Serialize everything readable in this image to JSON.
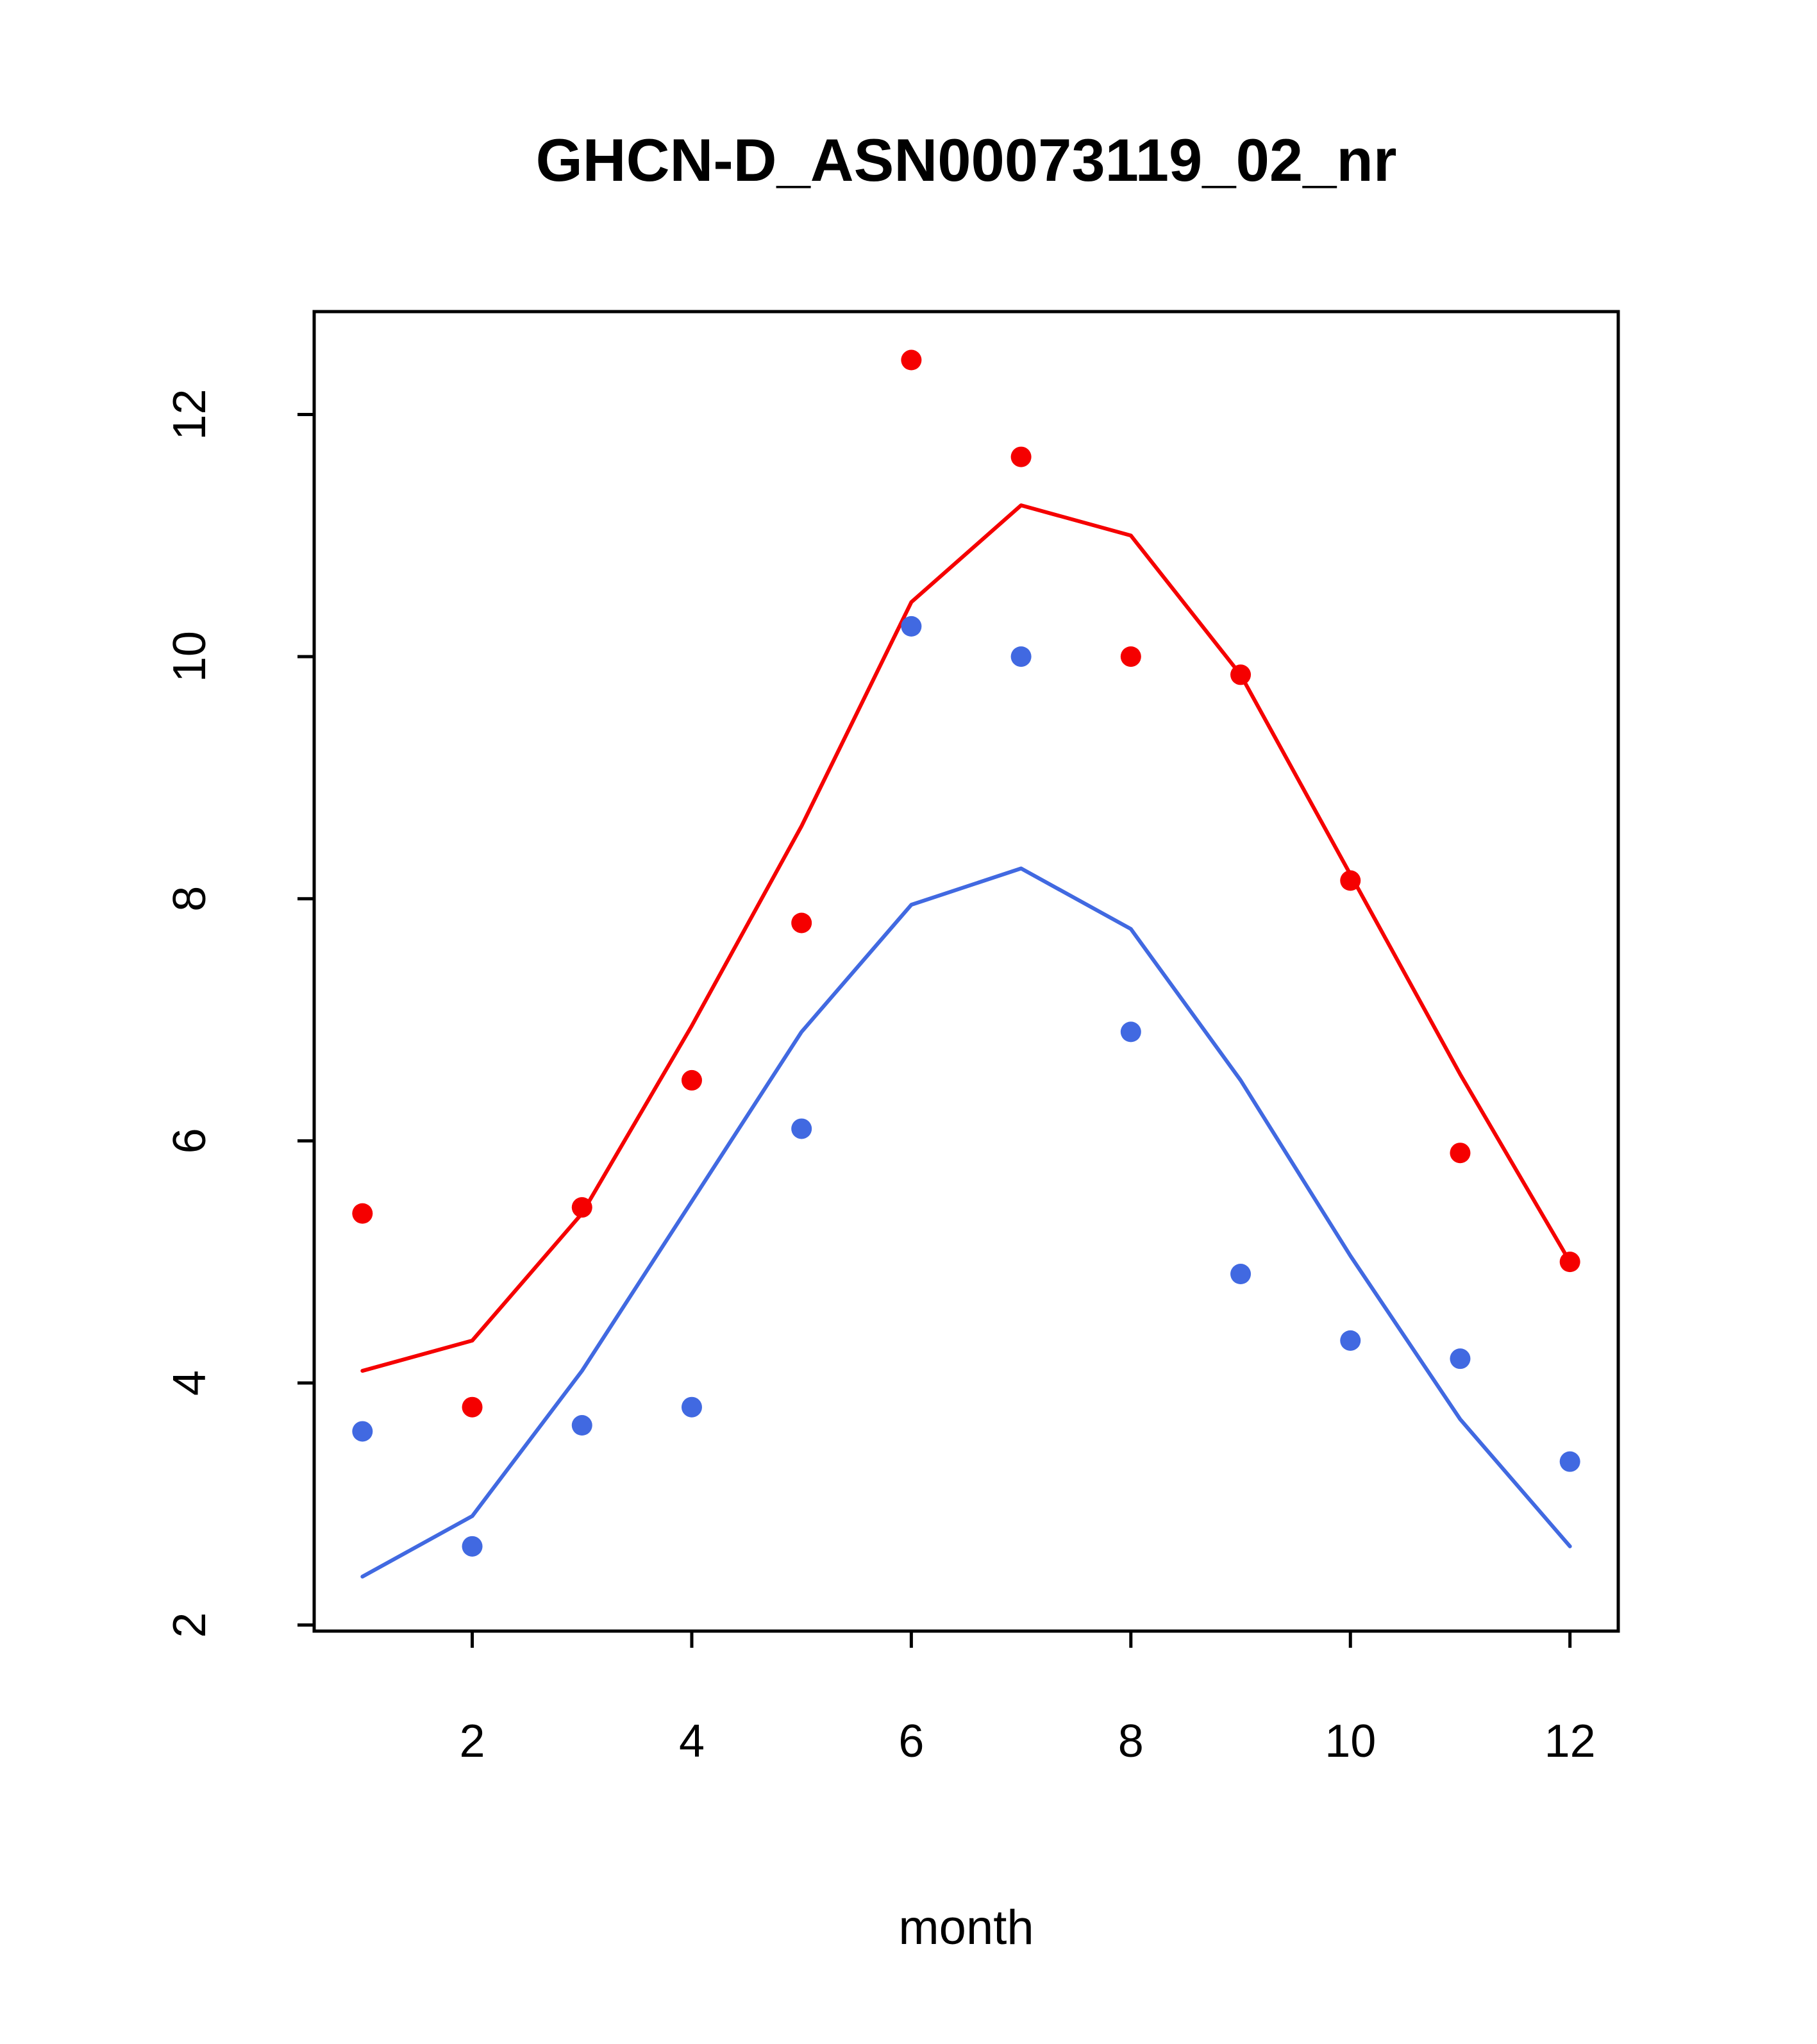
{
  "title": "GHCN-D_ASN00073119_02_nr",
  "chart_data": {
    "type": "line",
    "title": "GHCN-D_ASN00073119_02_nr",
    "xlabel": "month",
    "ylabel": "",
    "x": [
      1,
      2,
      3,
      4,
      5,
      6,
      7,
      8,
      9,
      10,
      11,
      12
    ],
    "xlim": [
      0.56,
      12.44
    ],
    "ylim": [
      1.95,
      12.85
    ],
    "xticks": [
      2,
      4,
      6,
      8,
      10,
      12
    ],
    "yticks": [
      2,
      4,
      6,
      8,
      10,
      12
    ],
    "grid": false,
    "legend": "none",
    "colors": {
      "red": "#f50000",
      "blue": "#4169e1",
      "axis": "#000000"
    },
    "series": [
      {
        "name": "red-points",
        "style": "scatter",
        "color": "#f50000",
        "values": [
          5.4,
          3.8,
          5.45,
          6.5,
          7.8,
          12.45,
          11.65,
          10.0,
          9.85,
          8.15,
          5.9,
          5.0
        ]
      },
      {
        "name": "red-line",
        "style": "line",
        "color": "#f50000",
        "values": [
          4.1,
          4.35,
          5.4,
          6.95,
          8.6,
          10.45,
          11.25,
          11.0,
          9.85,
          8.2,
          6.55,
          5.0
        ]
      },
      {
        "name": "blue-points",
        "style": "scatter",
        "color": "#4169e1",
        "values": [
          3.6,
          2.65,
          3.65,
          3.8,
          6.1,
          10.25,
          10.0,
          6.9,
          4.9,
          4.35,
          4.2,
          3.35
        ]
      },
      {
        "name": "blue-line",
        "style": "line",
        "color": "#4169e1",
        "values": [
          2.4,
          2.9,
          4.1,
          5.5,
          6.9,
          7.95,
          8.25,
          7.75,
          6.5,
          5.05,
          3.7,
          2.65
        ]
      }
    ]
  }
}
